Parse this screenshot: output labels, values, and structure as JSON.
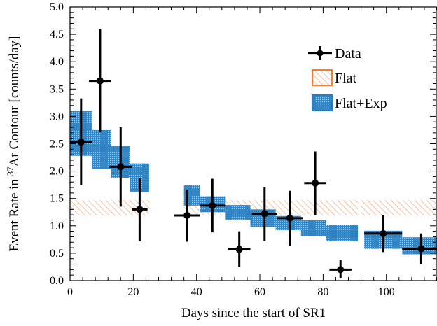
{
  "chart_data": {
    "type": "scatter",
    "title": "",
    "xlabel": "Days since the start of SR1",
    "ylabel_pre": "Event Rate in ",
    "ylabel_sup": "37",
    "ylabel_post": "Ar Contour [counts/day]",
    "xlim": [
      0,
      116
    ],
    "ylim": [
      0,
      5.0
    ],
    "x_ticks": [
      0,
      20,
      40,
      60,
      80,
      100
    ],
    "y_ticks": [
      "0.0",
      "0.5",
      "1.0",
      "1.5",
      "2.0",
      "2.5",
      "3.0",
      "3.5",
      "4.0",
      "4.5",
      "5.0"
    ],
    "legend_position": "top-right",
    "series": [
      {
        "name": "Data",
        "kind": "errorbar",
        "color": "#000000",
        "points": [
          {
            "x": 3.5,
            "xerr": 3.5,
            "y": 2.53,
            "y_low": 1.74,
            "y_high": 3.33
          },
          {
            "x": 9.5,
            "xerr": 3.5,
            "y": 3.65,
            "y_low": 2.71,
            "y_high": 4.59
          },
          {
            "x": 16.0,
            "xerr": 3.5,
            "y": 2.08,
            "y_low": 1.35,
            "y_high": 2.8
          },
          {
            "x": 22.0,
            "xerr": 2.5,
            "y": 1.3,
            "y_low": 0.72,
            "y_high": 1.87
          },
          {
            "x": 37.0,
            "xerr": 4.0,
            "y": 1.19,
            "y_low": 0.71,
            "y_high": 1.66
          },
          {
            "x": 45.0,
            "xerr": 4.0,
            "y": 1.37,
            "y_low": 0.88,
            "y_high": 1.86
          },
          {
            "x": 53.5,
            "xerr": 3.5,
            "y": 0.57,
            "y_low": 0.25,
            "y_high": 0.9
          },
          {
            "x": 61.5,
            "xerr": 4.0,
            "y": 1.22,
            "y_low": 0.72,
            "y_high": 1.7
          },
          {
            "x": 69.5,
            "xerr": 4.0,
            "y": 1.14,
            "y_low": 0.64,
            "y_high": 1.64
          },
          {
            "x": 77.5,
            "xerr": 3.5,
            "y": 1.78,
            "y_low": 1.19,
            "y_high": 2.36
          },
          {
            "x": 85.5,
            "xerr": 3.5,
            "y": 0.2,
            "y_low": 0.04,
            "y_high": 0.37
          },
          {
            "x": 99.0,
            "xerr": 6.0,
            "y": 0.86,
            "y_low": 0.52,
            "y_high": 1.2
          },
          {
            "x": 111.0,
            "xerr": 6.0,
            "y": 0.58,
            "y_low": 0.3,
            "y_high": 0.86
          }
        ]
      },
      {
        "name": "Flat",
        "kind": "band-hatched",
        "color": "#f08030",
        "bands": [
          {
            "x0": 0,
            "x1": 25,
            "low": 1.19,
            "high": 1.47
          },
          {
            "x0": 36,
            "x1": 91,
            "low": 1.19,
            "high": 1.47
          },
          {
            "x0": 92,
            "x1": 116,
            "low": 1.19,
            "high": 1.47
          }
        ]
      },
      {
        "name": "Flat+Exp",
        "kind": "band-dotted",
        "color": "#2a7dc0",
        "bins": [
          {
            "x0": 0,
            "x1": 7,
            "low": 2.28,
            "high": 3.1
          },
          {
            "x0": 7,
            "x1": 13,
            "low": 2.04,
            "high": 2.75
          },
          {
            "x0": 13,
            "x1": 19,
            "low": 1.88,
            "high": 2.46
          },
          {
            "x0": 19,
            "x1": 25,
            "low": 1.62,
            "high": 2.14
          },
          {
            "x0": 36,
            "x1": 41,
            "low": 1.37,
            "high": 1.74
          },
          {
            "x0": 41,
            "x1": 49,
            "low": 1.25,
            "high": 1.54
          },
          {
            "x0": 49,
            "x1": 57,
            "low": 1.11,
            "high": 1.38
          },
          {
            "x0": 57,
            "x1": 65,
            "low": 0.98,
            "high": 1.3
          },
          {
            "x0": 65,
            "x1": 73,
            "low": 0.92,
            "high": 1.18
          },
          {
            "x0": 73,
            "x1": 81,
            "low": 0.81,
            "high": 1.1
          },
          {
            "x0": 81,
            "x1": 91,
            "low": 0.72,
            "high": 1.01
          },
          {
            "x0": 93,
            "x1": 105,
            "low": 0.58,
            "high": 0.91
          },
          {
            "x0": 105,
            "x1": 116,
            "low": 0.48,
            "high": 0.79
          }
        ]
      }
    ]
  }
}
